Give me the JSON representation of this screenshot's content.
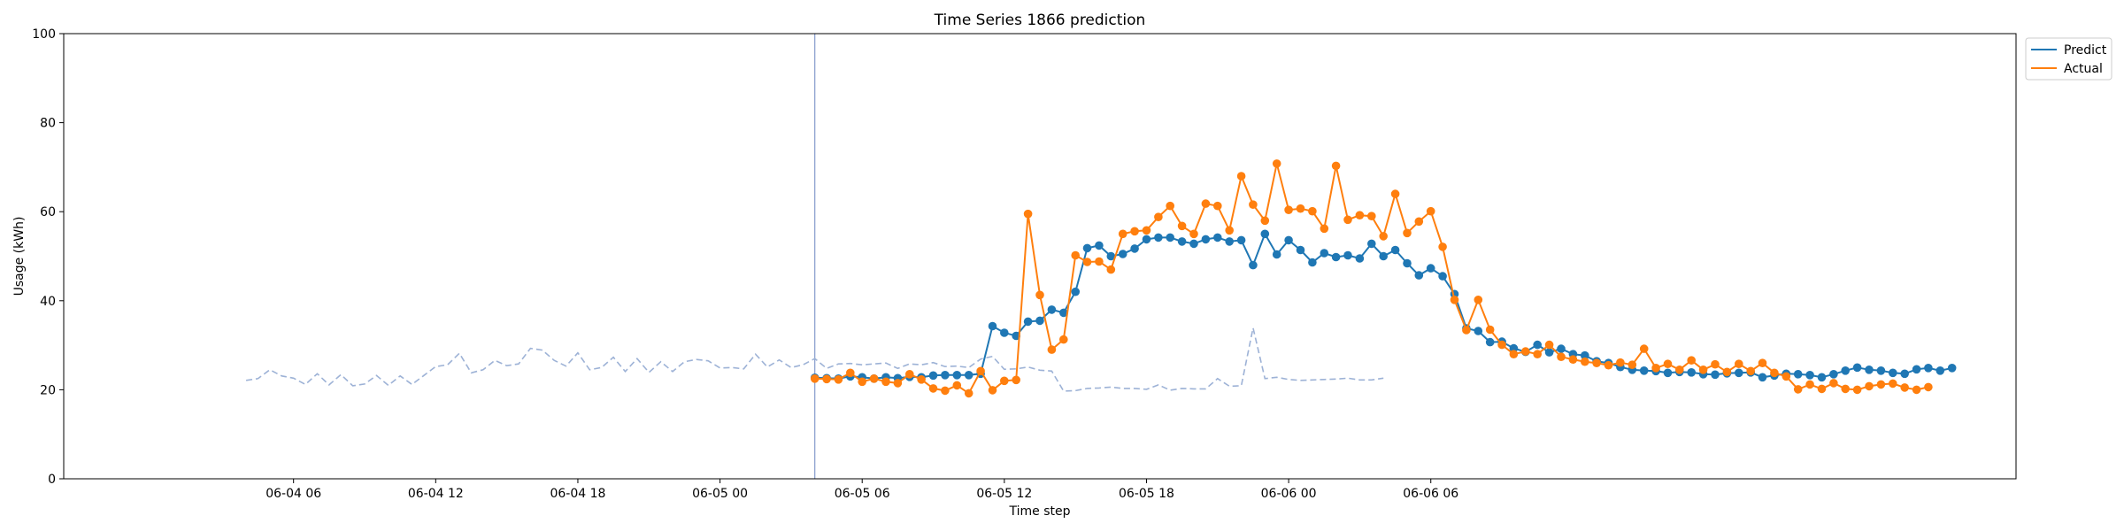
{
  "chart_data": {
    "type": "line",
    "title": "Time Series 1866 prediction",
    "xlabel": "Time step",
    "ylabel": "Usage (kWh)",
    "ylim": [
      0,
      100
    ],
    "yticks": [
      0,
      20,
      40,
      60,
      80,
      100
    ],
    "x_axis": {
      "unit": "hours",
      "range": [
        -3.7,
        78.7
      ],
      "ticks": [
        {
          "label": "06-04 06",
          "value": 6
        },
        {
          "label": "06-04 12",
          "value": 12
        },
        {
          "label": "06-04 18",
          "value": 18
        },
        {
          "label": "06-05 00",
          "value": 24
        },
        {
          "label": "06-05 06",
          "value": 30
        },
        {
          "label": "06-05 12",
          "value": 36
        },
        {
          "label": "06-05 18",
          "value": 42
        },
        {
          "label": "06-06 00",
          "value": 48
        },
        {
          "label": "06-06 06",
          "value": 54
        }
      ]
    },
    "grid": false,
    "legend_position": "upper-right-outside",
    "forecast_start": 28,
    "colors": {
      "history": "#9db2d6",
      "predict": "#1f77b4",
      "actual": "#ff7f0e",
      "divider": "#8ea3cf"
    },
    "history": {
      "name": "",
      "start": 4,
      "step": 0.5,
      "values": [
        22.1,
        22.5,
        24.5,
        23.1,
        22.6,
        21.2,
        23.6,
        21.1,
        23.4,
        20.9,
        21.3,
        23.2,
        21.0,
        23.1,
        21.2,
        23.2,
        25.2,
        25.6,
        28.2,
        23.8,
        24.5,
        26.6,
        25.4,
        25.8,
        29.3,
        28.9,
        26.6,
        25.3,
        28.3,
        24.5,
        25.0,
        27.3,
        24.1,
        27.0,
        23.9,
        26.3,
        24.1,
        26.3,
        26.8,
        26.5,
        24.9,
        25.0,
        24.7,
        28.0,
        25.1,
        26.7,
        25.0,
        25.6,
        27.0,
        24.8,
        25.8,
        25.9,
        25.6,
        25.8,
        26.0,
        24.8,
        25.8,
        25.6,
        26.1,
        25.2,
        25.3,
        25.0,
        26.9,
        27.5,
        24.6,
        24.7,
        25.1,
        24.4,
        24.2,
        19.7,
        19.8,
        20.3,
        20.4,
        20.6,
        20.3,
        20.3,
        20.1,
        21.1,
        19.9,
        20.3,
        20.2,
        20.2,
        22.5,
        20.8,
        20.9,
        33.9,
        22.5,
        22.8,
        22.3,
        22.1,
        22.2,
        22.3,
        22.4,
        22.6,
        22.2,
        22.2,
        22.6
      ]
    },
    "series": [
      {
        "name": "Predict",
        "start": 28,
        "step": 0.5,
        "values": [
          22.7,
          22.6,
          22.5,
          23.0,
          22.8,
          22.5,
          22.8,
          22.6,
          22.9,
          22.8,
          23.2,
          23.3,
          23.3,
          23.3,
          23.6,
          34.3,
          32.8,
          32.1,
          35.3,
          35.5,
          38.0,
          37.3,
          42.0,
          51.8,
          52.4,
          50.0,
          50.5,
          51.7,
          53.8,
          54.2,
          54.2,
          53.3,
          52.8,
          53.8,
          54.2,
          53.3,
          53.6,
          48.0,
          55.0,
          50.4,
          53.6,
          51.4,
          48.6,
          50.7,
          49.8,
          50.2,
          49.5,
          52.8,
          50.0,
          51.4,
          48.4,
          45.7,
          47.3,
          45.5,
          41.5,
          33.8,
          33.2,
          30.7,
          30.8,
          29.3,
          28.5,
          30.1,
          28.4,
          29.2,
          28.0,
          27.7,
          26.4,
          26.0,
          25.1,
          24.5,
          24.3,
          24.2,
          23.8,
          24.0,
          23.9,
          23.5,
          23.4,
          23.7,
          23.8,
          23.9,
          22.8,
          23.2,
          23.6,
          23.5,
          23.3,
          22.8,
          23.5,
          24.3,
          25.0,
          24.5,
          24.3,
          23.8,
          23.6,
          24.6,
          24.9,
          24.3,
          24.9
        ]
      },
      {
        "name": "Actual",
        "start": 28,
        "step": 0.5,
        "values": [
          22.5,
          22.4,
          22.3,
          23.8,
          21.8,
          22.5,
          21.8,
          21.5,
          23.5,
          22.3,
          20.3,
          19.8,
          21.0,
          19.2,
          24.2,
          19.9,
          22.0,
          22.2,
          59.5,
          41.3,
          29.0,
          31.3,
          50.2,
          48.7,
          48.8,
          47.0,
          55.0,
          55.6,
          55.8,
          58.8,
          61.3,
          56.8,
          55.0,
          61.8,
          61.3,
          55.8,
          68.0,
          61.6,
          58.0,
          70.8,
          60.4,
          60.7,
          60.1,
          56.2,
          70.3,
          58.2,
          59.2,
          59.0,
          54.5,
          64.0,
          55.2,
          57.8,
          60.1,
          52.1,
          40.2,
          33.4,
          40.2,
          33.5,
          30.1,
          28.0,
          28.6,
          28.0,
          30.1,
          27.4,
          26.8,
          26.3,
          26.0,
          25.5,
          26.1,
          25.6,
          29.2,
          24.9,
          25.8,
          24.5,
          26.6,
          24.5,
          25.7,
          24.0,
          25.8,
          24.2,
          26.0,
          23.8,
          23.0,
          20.1,
          21.2,
          20.2,
          21.5,
          20.2,
          20.0,
          20.8,
          21.2,
          21.4,
          20.5,
          20.0,
          20.6
        ]
      }
    ]
  }
}
